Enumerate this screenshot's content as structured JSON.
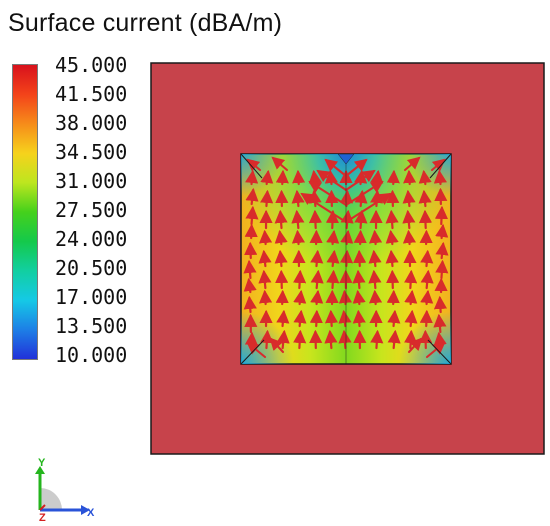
{
  "title": "Surface current (dBA/m)",
  "colorbar": {
    "ticks": [
      "45.000",
      "41.500",
      "38.000",
      "34.500",
      "31.000",
      "27.500",
      "24.000",
      "20.500",
      "17.000",
      "13.500",
      "10.000"
    ],
    "min": 10,
    "max": 45,
    "colors": [
      "#d8111c",
      "#f3431a",
      "#f68c1a",
      "#f6d21c",
      "#bde61f",
      "#45d11c",
      "#14c94b",
      "#12cfa1",
      "#15c9e6",
      "#1d7fe6",
      "#2131d9"
    ]
  },
  "model": {
    "substrate_color": "#c7434b",
    "patch_edge_color": "#f2b11f",
    "patch_center_color": "#82d91e",
    "arrow_color": "#d82b2b",
    "outline_color": "#1a1a1a"
  },
  "axes": {
    "x_label": "X",
    "y_label": "Y",
    "z_label": "Z",
    "x_color": "#2a53d8",
    "y_color": "#24b51d",
    "z_color": "#d42020"
  }
}
